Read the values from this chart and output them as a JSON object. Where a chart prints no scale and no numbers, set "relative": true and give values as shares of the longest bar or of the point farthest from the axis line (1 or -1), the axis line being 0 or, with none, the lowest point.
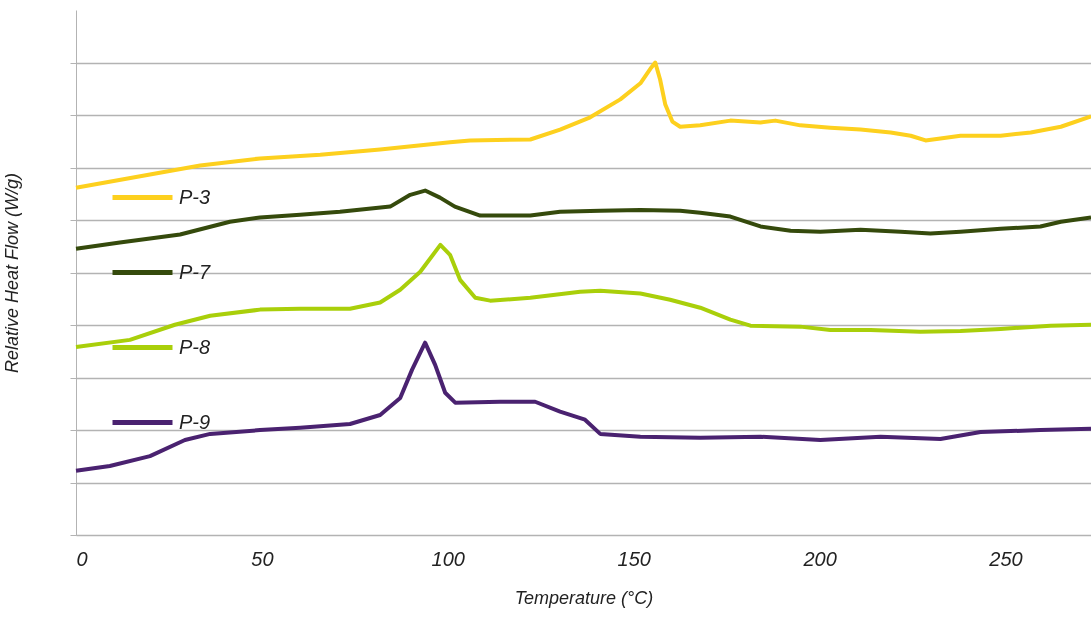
{
  "chart_data": {
    "type": "line",
    "xlabel": "Temperature (°C)",
    "ylabel": "Relative Heat Flow (W/g)",
    "relative": true,
    "xlim": [
      0,
      273
    ],
    "xticks": [
      0,
      50,
      100,
      150,
      200,
      250
    ],
    "grid": "y",
    "legend": "left",
    "marker": "none",
    "line_style": "solid",
    "series": [
      {
        "name": "P-3",
        "color": "#fdd01e",
        "x": [
          0,
          19.9,
          33.4,
          49.5,
          65.7,
          81.8,
          100.6,
          106.0,
          122.2,
          130.2,
          138.3,
          146.4,
          151.8,
          154.7,
          155.8,
          157.1,
          158.5,
          160.4,
          162.5,
          167.9,
          176.0,
          184.1,
          188.1,
          194.8,
          202.9,
          211.0,
          219.1,
          224.5,
          228.5,
          232.5,
          237.9,
          248.7,
          256.8,
          264.9,
          273.0
        ],
        "values": [
          0.735,
          0.763,
          0.782,
          0.797,
          0.805,
          0.816,
          0.831,
          0.835,
          0.837,
          0.858,
          0.884,
          0.922,
          0.956,
          0.989,
          1.0,
          0.964,
          0.911,
          0.875,
          0.864,
          0.867,
          0.877,
          0.873,
          0.877,
          0.867,
          0.862,
          0.858,
          0.852,
          0.845,
          0.835,
          0.839,
          0.845,
          0.845,
          0.852,
          0.864,
          0.886
        ]
      },
      {
        "name": "P-7",
        "color": "#354a0c",
        "x": [
          0,
          11.8,
          28.0,
          41.4,
          49.5,
          60.3,
          71.0,
          84.5,
          89.9,
          93.9,
          97.9,
          101.9,
          108.7,
          122.2,
          130.2,
          141.0,
          151.8,
          162.5,
          167.9,
          176.0,
          184.1,
          192.2,
          200.2,
          211.0,
          221.8,
          229.8,
          237.9,
          248.7,
          259.4,
          264.9,
          273.0
        ],
        "values": [
          0.606,
          0.619,
          0.636,
          0.663,
          0.672,
          0.678,
          0.684,
          0.695,
          0.72,
          0.729,
          0.714,
          0.695,
          0.676,
          0.676,
          0.684,
          0.686,
          0.688,
          0.686,
          0.682,
          0.674,
          0.653,
          0.644,
          0.642,
          0.646,
          0.642,
          0.638,
          0.642,
          0.648,
          0.653,
          0.663,
          0.672
        ]
      },
      {
        "name": "P-8",
        "color": "#a9cf0a",
        "x": [
          0,
          14.5,
          26.6,
          36.1,
          49.5,
          60.3,
          73.7,
          81.8,
          87.2,
          92.6,
          98.0,
          100.6,
          103.3,
          107.4,
          111.4,
          122.2,
          135.6,
          141.0,
          151.8,
          159.8,
          167.9,
          176.0,
          181.4,
          194.8,
          202.9,
          213.7,
          227.1,
          237.9,
          248.7,
          262.1,
          273.0
        ],
        "values": [
          0.398,
          0.413,
          0.445,
          0.464,
          0.477,
          0.479,
          0.479,
          0.492,
          0.519,
          0.557,
          0.614,
          0.593,
          0.54,
          0.502,
          0.496,
          0.502,
          0.515,
          0.517,
          0.511,
          0.498,
          0.481,
          0.456,
          0.443,
          0.441,
          0.434,
          0.434,
          0.43,
          0.432,
          0.436,
          0.443,
          0.445
        ]
      },
      {
        "name": "P-9",
        "color": "#4a2270",
        "x": [
          0,
          9.1,
          19.9,
          29.3,
          36.1,
          49.5,
          60.3,
          73.7,
          81.8,
          87.2,
          90.4,
          93.9,
          96.6,
          99.3,
          102.0,
          114.1,
          123.5,
          130.2,
          136.9,
          141.0,
          151.8,
          167.9,
          184.1,
          200.2,
          216.4,
          232.5,
          243.3,
          259.4,
          273.0
        ],
        "values": [
          0.136,
          0.146,
          0.167,
          0.201,
          0.214,
          0.222,
          0.227,
          0.235,
          0.254,
          0.29,
          0.35,
          0.407,
          0.36,
          0.301,
          0.28,
          0.282,
          0.282,
          0.261,
          0.244,
          0.214,
          0.208,
          0.206,
          0.208,
          0.201,
          0.208,
          0.203,
          0.218,
          0.222,
          0.225
        ]
      }
    ]
  }
}
